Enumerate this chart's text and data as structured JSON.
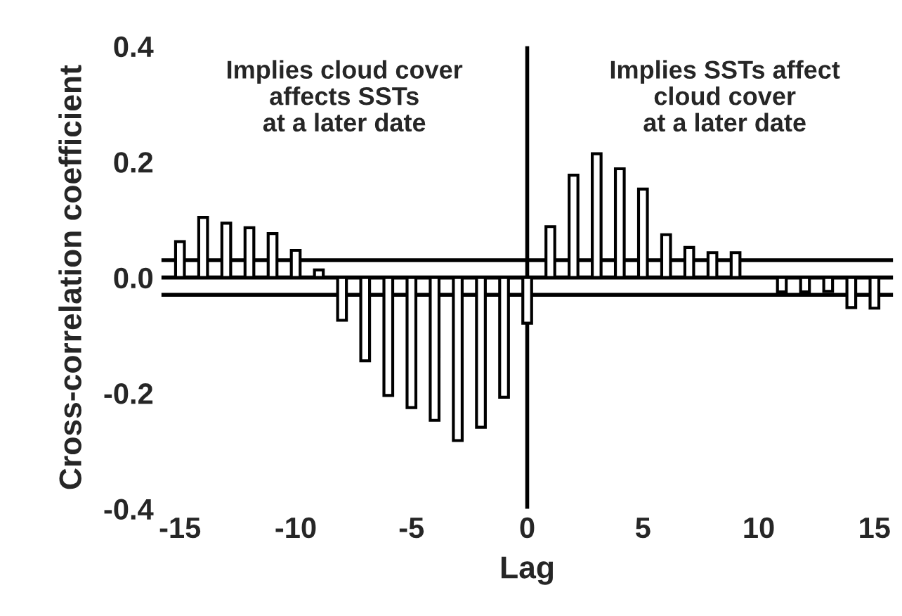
{
  "chart_data": {
    "type": "bar",
    "xlabel": "Lag",
    "ylabel": "Cross-correlation coefficient",
    "x": [
      -15,
      -14,
      -13,
      -12,
      -11,
      -10,
      -9,
      -8,
      -7,
      -6,
      -5,
      -4,
      -3,
      -2,
      -1,
      0,
      1,
      2,
      3,
      4,
      5,
      6,
      7,
      8,
      9,
      10,
      11,
      12,
      13,
      14,
      15
    ],
    "values": [
      0.062,
      0.104,
      0.094,
      0.086,
      0.076,
      0.047,
      0.013,
      -0.074,
      -0.144,
      -0.204,
      -0.225,
      -0.247,
      -0.282,
      -0.259,
      -0.207,
      -0.079,
      0.088,
      0.177,
      0.214,
      0.188,
      0.153,
      0.074,
      0.052,
      0.043,
      0.043,
      null,
      -0.025,
      -0.025,
      -0.024,
      -0.052,
      -0.053
    ],
    "color": "#ffffff",
    "xlim": [
      -15.8,
      15.8
    ],
    "ylim": [
      -0.4,
      0.4
    ],
    "xticks": [
      -15,
      -10,
      -5,
      0,
      5,
      10,
      15
    ],
    "yticks": [
      {
        "value": 0.4,
        "label": "0.4"
      },
      {
        "value": 0.2,
        "label": "0.2"
      },
      {
        "value": 0.0,
        "label": "0.0"
      },
      {
        "value": -0.2,
        "label": "-0.2"
      },
      {
        "value": -0.4,
        "label": "-0.4"
      }
    ],
    "ref_lines": [
      {
        "axis": "y",
        "value": 0.03,
        "color": "#000000"
      },
      {
        "axis": "y",
        "value": -0.03,
        "color": "#000000"
      },
      {
        "axis": "y",
        "value": 0,
        "color": "#000000"
      },
      {
        "axis": "x",
        "value": 0,
        "color": "#000000"
      }
    ],
    "annotations": [
      "Implies cloud cover\naffects SSTs\nat a later date",
      "Implies SSTs affect\ncloud cover\nat a later date"
    ],
    "grid": false,
    "legend": false
  }
}
